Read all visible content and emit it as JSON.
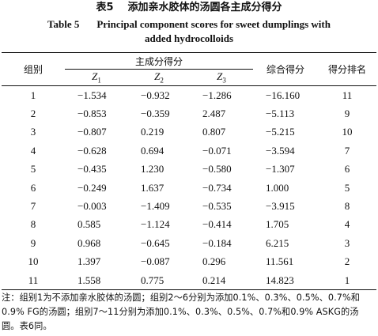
{
  "title_cn": {
    "number": "表5",
    "text": "添加亲水胶体的汤圆各主成分得分"
  },
  "title_en": {
    "number": "Table 5",
    "line1": "Principal component scores for sweet dumplings with",
    "line2": "added hydrocolloids"
  },
  "headers": {
    "group": "组别",
    "principal_score": "主成分得分",
    "z": [
      {
        "letter": "Z",
        "sub": "1"
      },
      {
        "letter": "Z",
        "sub": "2"
      },
      {
        "letter": "Z",
        "sub": "3"
      }
    ],
    "composite": "综合得分",
    "rank": "得分排名"
  },
  "rows": [
    {
      "group": "1",
      "z1": "−1.534",
      "z2": "−0.932",
      "z3": "−1.286",
      "score": "−16.160",
      "rank": "11"
    },
    {
      "group": "2",
      "z1": "−0.853",
      "z2": "−0.359",
      "z3": "2.487",
      "score": "−5.113",
      "rank": "9"
    },
    {
      "group": "3",
      "z1": "−0.807",
      "z2": "0.219",
      "z3": "0.807",
      "score": "−5.215",
      "rank": "10"
    },
    {
      "group": "4",
      "z1": "−0.628",
      "z2": "0.694",
      "z3": "−0.071",
      "score": "−3.594",
      "rank": "7"
    },
    {
      "group": "5",
      "z1": "−0.435",
      "z2": "1.230",
      "z3": "−0.580",
      "score": "−1.307",
      "rank": "6"
    },
    {
      "group": "6",
      "z1": "−0.249",
      "z2": "1.637",
      "z3": "−0.734",
      "score": "1.000",
      "rank": "5"
    },
    {
      "group": "7",
      "z1": "−0.003",
      "z2": "−1.409",
      "z3": "−0.535",
      "score": "−3.915",
      "rank": "8"
    },
    {
      "group": "8",
      "z1": "0.585",
      "z2": "−1.124",
      "z3": "−0.414",
      "score": "1.705",
      "rank": "4"
    },
    {
      "group": "9",
      "z1": "0.968",
      "z2": "−0.645",
      "z3": "−0.184",
      "score": "6.215",
      "rank": "3"
    },
    {
      "group": "10",
      "z1": "1.397",
      "z2": "−0.087",
      "z3": "0.296",
      "score": "11.561",
      "rank": "2"
    },
    {
      "group": "11",
      "z1": "1.558",
      "z2": "0.775",
      "z3": "0.214",
      "score": "14.823",
      "rank": "1"
    }
  ],
  "note": "注：组别1为不添加亲水胶体的汤圆；组别2～6分别为添加0.1%、0.3%、0.5%、0.7%和0.9% FG的汤圆；组别7～11分别为添加0.1%、0.3%、0.5%、0.7%和0.9% ASKG的汤圆。表6同。"
}
